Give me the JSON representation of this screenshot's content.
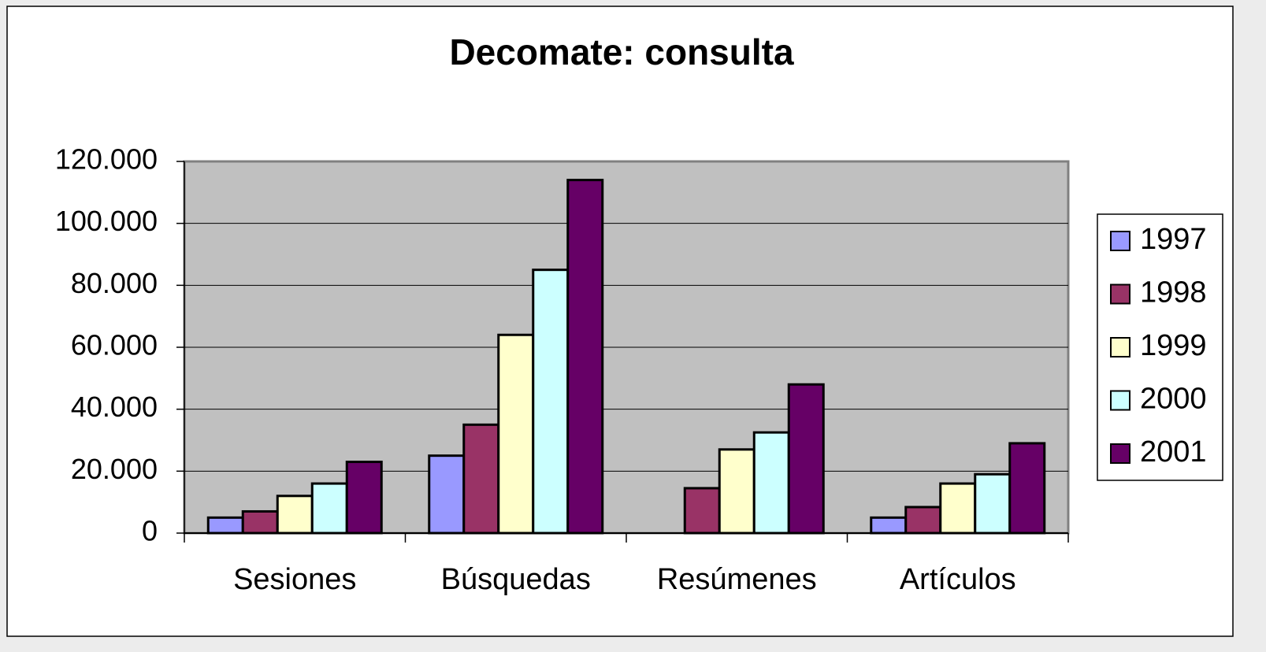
{
  "chart_data": {
    "type": "bar",
    "title": "Decomate: consulta",
    "categories": [
      "Sesiones",
      "Búsquedas",
      "Resúmenes",
      "Artículos"
    ],
    "series": [
      {
        "name": "1997",
        "color": "#9999ff",
        "values": [
          5000,
          25000,
          0,
          5000
        ]
      },
      {
        "name": "1998",
        "color": "#993366",
        "values": [
          7000,
          35000,
          14500,
          8400
        ]
      },
      {
        "name": "1999",
        "color": "#ffffcc",
        "values": [
          12000,
          64000,
          27000,
          16000
        ]
      },
      {
        "name": "2000",
        "color": "#ccffff",
        "values": [
          16000,
          85000,
          32500,
          19000
        ]
      },
      {
        "name": "2001",
        "color": "#660066",
        "values": [
          23000,
          114000,
          48000,
          29000
        ]
      }
    ],
    "ylim": [
      0,
      120000
    ],
    "yticks": [
      0,
      {
        "value": 20000,
        "label": "20.000"
      },
      {
        "value": 40000,
        "label": "40.000"
      },
      {
        "value": 60000,
        "label": "60.000"
      },
      {
        "value": 80000,
        "label": "80.000"
      },
      {
        "value": 100000,
        "label": "100.000"
      },
      {
        "value": 120000,
        "label": "120.000"
      }
    ],
    "grid": true,
    "legend": "right"
  }
}
